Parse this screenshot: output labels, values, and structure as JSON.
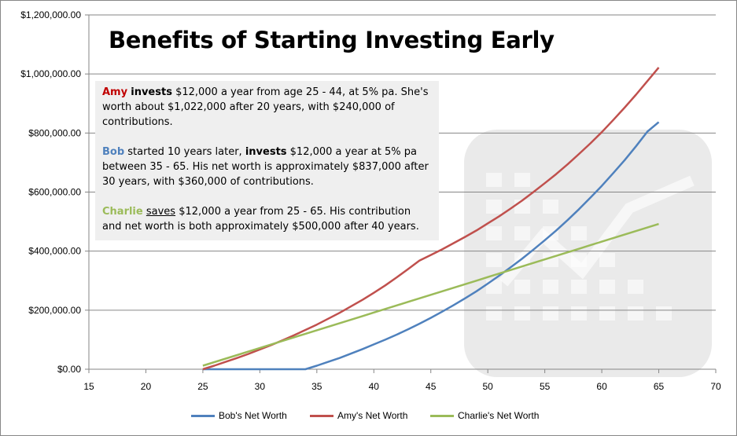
{
  "title": "Benefits of Starting Investing Early",
  "note": {
    "amy": {
      "name": "Amy",
      "verb": "invests",
      "rest": " $12,000 a year from age 25 - 44, at 5% pa. She's worth about $1,022,000 after 20 years, with $240,000 of contributions."
    },
    "bob": {
      "name": "Bob",
      "pre": " started 10 years later, ",
      "verb": "invests",
      "rest": " $12,000 a year at 5% pa between 35 - 65. His net worth is approximately $837,000 after 30 years, with $360,000 of contributions."
    },
    "charlie": {
      "name": "Charlie",
      "verb": "saves",
      "rest": " $12,000 a year from 25 - 65. His contribution and net worth is both approximately  $500,000 after 40 years."
    }
  },
  "colors": {
    "bob": "#4f81bd",
    "amy": "#c0504d",
    "charlie": "#9bbb59",
    "gridline": "#868686",
    "background_icon": "#d9d9d9"
  },
  "chart_data": {
    "type": "line",
    "title": "Benefits of Starting Investing Early",
    "xlabel": "",
    "ylabel": "",
    "xlim": [
      15,
      70
    ],
    "ylim": [
      0,
      1200000
    ],
    "x_ticks": [
      "15",
      "20",
      "25",
      "30",
      "35",
      "40",
      "45",
      "50",
      "55",
      "60",
      "65",
      "70"
    ],
    "y_ticks": [
      "$0.00",
      "$200,000.00",
      "$400,000.00",
      "$600,000.00",
      "$800,000.00",
      "$1,000,000.00",
      "$1,200,000.00"
    ],
    "grid": true,
    "legend_position": "bottom",
    "series": [
      {
        "name": "Bob's Net Worth",
        "color": "#4f81bd",
        "x": [
          25,
          26,
          27,
          28,
          29,
          30,
          31,
          32,
          33,
          34,
          35,
          36,
          37,
          38,
          39,
          40,
          41,
          42,
          43,
          44,
          45,
          46,
          47,
          48,
          49,
          50,
          51,
          52,
          53,
          54,
          55,
          56,
          57,
          58,
          59,
          60,
          61,
          62,
          63,
          64,
          65
        ],
        "y": [
          0,
          0,
          0,
          0,
          0,
          0,
          0,
          0,
          0,
          0,
          12000,
          25000,
          38000,
          53000,
          68000,
          84000,
          100000,
          117000,
          135000,
          154000,
          174000,
          195000,
          217000,
          240000,
          264000,
          290000,
          317000,
          345000,
          374000,
          405000,
          437000,
          470000,
          505000,
          542000,
          581000,
          621000,
          664000,
          708000,
          755000,
          805000,
          837000
        ]
      },
      {
        "name": "Amy's Net Worth",
        "color": "#c0504d",
        "x": [
          25,
          26,
          27,
          28,
          29,
          30,
          31,
          32,
          33,
          34,
          35,
          36,
          37,
          38,
          39,
          40,
          41,
          42,
          43,
          44,
          45,
          46,
          47,
          48,
          49,
          50,
          51,
          52,
          53,
          54,
          55,
          56,
          57,
          58,
          59,
          60,
          61,
          62,
          63,
          64,
          65
        ],
        "y": [
          0,
          12000,
          25000,
          38000,
          52000,
          67000,
          82000,
          98000,
          115000,
          133000,
          151000,
          171000,
          191000,
          213000,
          235000,
          259000,
          284000,
          311000,
          339000,
          368000,
          387000,
          406000,
          427000,
          448000,
          470000,
          494000,
          518000,
          544000,
          571000,
          600000,
          630000,
          661000,
          694000,
          729000,
          765000,
          803000,
          844000,
          886000,
          930000,
          976000,
          1022000
        ]
      },
      {
        "name": "Charlie's Net Worth",
        "color": "#9bbb59",
        "x": [
          25,
          26,
          27,
          28,
          29,
          30,
          31,
          32,
          33,
          34,
          35,
          36,
          37,
          38,
          39,
          40,
          41,
          42,
          43,
          44,
          45,
          46,
          47,
          48,
          49,
          50,
          51,
          52,
          53,
          54,
          55,
          56,
          57,
          58,
          59,
          60,
          61,
          62,
          63,
          64,
          65
        ],
        "y": [
          12000,
          24000,
          36000,
          48000,
          60000,
          72000,
          84000,
          96000,
          108000,
          120000,
          132000,
          144000,
          156000,
          168000,
          180000,
          192000,
          204000,
          216000,
          228000,
          240000,
          252000,
          264000,
          276000,
          288000,
          300000,
          312000,
          324000,
          336000,
          348000,
          360000,
          372000,
          384000,
          396000,
          408000,
          420000,
          432000,
          444000,
          456000,
          468000,
          480000,
          492000
        ]
      }
    ]
  }
}
